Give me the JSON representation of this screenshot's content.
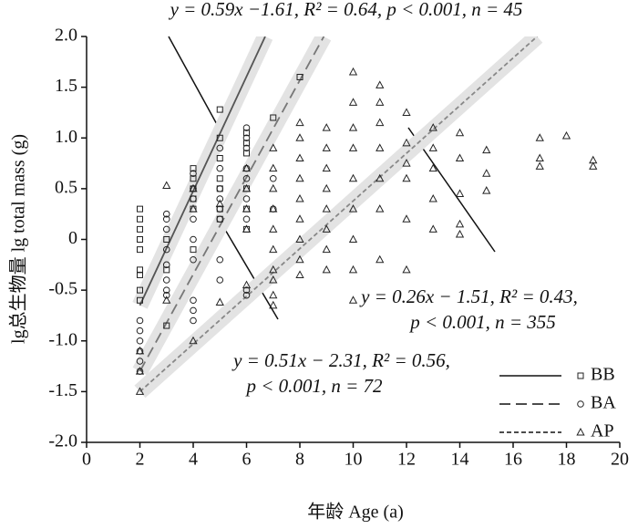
{
  "chart_data": {
    "type": "scatter",
    "xlabel": "年龄 Age (a)",
    "ylabel": "lg总生物量 lg total mass (g)",
    "xlim": [
      0,
      20
    ],
    "xticks": [
      0,
      2,
      4,
      6,
      8,
      10,
      12,
      14,
      16,
      18,
      20
    ],
    "ylim": [
      -2,
      2
    ],
    "yticks": [
      {
        "value": -2,
        "label": "-2.0"
      },
      -1.5,
      {
        "value": -1,
        "label": "-1.0"
      },
      -0.5,
      0,
      0.5,
      {
        "value": 1,
        "label": "1.0"
      },
      1.5,
      {
        "value": 2,
        "label": "2.0"
      }
    ],
    "legend": "lower right",
    "annotations": [
      "y = 0.59x −1.61, R² = 0.64, p < 0.001, n = 45",
      "y = 0.26x − 1.51, R² = 0.43,",
      "p < 0.001, n = 355",
      "y = 0.51x − 2.31, R² = 0.56,",
      "p < 0.001, n = 72"
    ],
    "series": [
      {
        "name": "BB",
        "marker": "square",
        "line": "solid",
        "color": "#555555",
        "x": [
          2,
          2,
          2,
          2,
          2,
          2,
          2,
          2,
          2,
          3,
          3,
          3,
          4,
          4,
          4,
          4,
          4,
          4,
          5,
          5,
          5,
          5,
          5,
          5,
          5,
          6,
          6,
          6,
          6,
          6,
          6,
          7,
          8
        ],
        "values": [
          0.3,
          0.2,
          0.1,
          0,
          -0.1,
          -0.3,
          -0.35,
          -0.5,
          -0.6,
          -0.85,
          0,
          -0.3,
          0.7,
          0.5,
          0.3,
          0.6,
          -0.1,
          0.4,
          1.28,
          1.0,
          0.8,
          0.6,
          0.5,
          0.3,
          0.2,
          1.05,
          0.95,
          0.85,
          0.5,
          0.3,
          0.1,
          1.2,
          1.6
        ],
        "fit_x": [
          2,
          6.7
        ],
        "fit_y": [
          -0.65,
          2
        ]
      },
      {
        "name": "BA",
        "marker": "circle",
        "line": "dashed",
        "color": "#777777",
        "x": [
          2,
          2,
          2,
          2,
          2,
          2,
          3,
          3,
          3,
          3,
          3,
          3,
          3,
          3,
          4,
          4,
          4,
          4,
          4,
          4,
          4,
          4,
          4,
          5,
          5,
          5,
          5,
          5,
          5,
          5,
          5,
          6,
          6,
          6,
          6,
          6,
          6,
          6,
          6,
          6,
          7,
          7
        ],
        "values": [
          -0.9,
          -1.0,
          -1.1,
          -1.3,
          -0.8,
          -1.2,
          0.25,
          0.2,
          0.1,
          -0.1,
          -0.25,
          -0.4,
          -0.5,
          -0.55,
          0.65,
          0.5,
          0.4,
          0.2,
          0,
          -0.2,
          -0.6,
          -0.7,
          -0.8,
          0.9,
          0.7,
          0.5,
          0.4,
          0.3,
          0.2,
          -0.2,
          -0.4,
          1.1,
          1.0,
          0.9,
          0.7,
          0.6,
          0.4,
          0.2,
          -0.5,
          -0.55,
          0.6,
          0.3
        ],
        "fit_x": [
          2,
          8.9
        ],
        "fit_y": [
          -1.3,
          2
        ]
      },
      {
        "name": "AP",
        "marker": "triangle",
        "line": "dotted",
        "color": "#888888",
        "x": [
          2,
          2,
          2,
          3,
          3,
          4,
          4,
          4,
          5,
          5,
          6,
          6,
          6,
          6,
          6,
          7,
          7,
          7,
          7,
          7,
          7,
          7,
          7,
          7,
          7,
          8,
          8,
          8,
          8,
          8,
          8,
          8,
          8,
          8,
          9,
          9,
          9,
          9,
          9,
          9,
          9,
          9,
          10,
          10,
          10,
          10,
          10,
          10,
          10,
          10,
          10,
          11,
          11,
          11,
          11,
          11,
          11,
          11,
          12,
          12,
          12,
          12,
          12,
          12,
          13,
          13,
          13,
          13,
          13,
          14,
          14,
          14,
          14,
          14,
          15,
          15,
          15,
          17,
          17,
          17,
          18,
          19,
          19
        ],
        "values": [
          -1.5,
          -1.3,
          -1.1,
          0.53,
          -0.6,
          -1.0,
          0.3,
          0.5,
          -0.62,
          0.35,
          -0.45,
          0.1,
          0.3,
          0.5,
          0.7,
          0.9,
          0.7,
          0.5,
          0.3,
          0.1,
          -0.1,
          -0.3,
          -0.4,
          -0.55,
          -0.65,
          1.15,
          1.0,
          0.8,
          0.6,
          0.4,
          0.2,
          0,
          -0.2,
          -0.35,
          1.1,
          0.9,
          0.7,
          0.5,
          0.3,
          0.1,
          -0.1,
          -0.3,
          1.65,
          1.35,
          1.1,
          0.9,
          0.6,
          0.3,
          0,
          -0.3,
          -0.6,
          1.52,
          1.35,
          1.15,
          0.9,
          0.6,
          0.3,
          -0.2,
          1.25,
          0.95,
          0.75,
          0.6,
          0.2,
          -0.3,
          1.1,
          0.9,
          0.7,
          0.4,
          0.1,
          1.05,
          0.8,
          0.45,
          0.15,
          0.05,
          0.88,
          0.65,
          0.48,
          1.0,
          0.8,
          0.72,
          1.02,
          0.78,
          0.72
        ],
        "fit_x": [
          2,
          16.9
        ],
        "fit_y": [
          -1.5,
          2
        ]
      }
    ]
  }
}
